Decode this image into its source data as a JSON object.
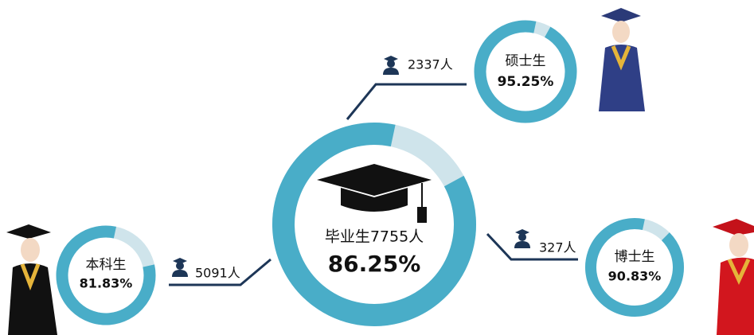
{
  "chart_data": [
    {
      "type": "donut",
      "title": "毕业生7755人",
      "values": [
        86.25
      ],
      "value_labels": [
        "86.25%"
      ],
      "color": "#49adc8",
      "track_color": "#cfe4eb"
    },
    {
      "type": "donut",
      "title": "硕士生",
      "annotation": "2337人",
      "values": [
        95.25
      ],
      "value_labels": [
        "95.25%"
      ],
      "color": "#49adc8",
      "track_color": "#cfe4eb"
    },
    {
      "type": "donut",
      "title": "博士生",
      "annotation": "327人",
      "values": [
        90.83
      ],
      "value_labels": [
        "90.83%"
      ],
      "color": "#49adc8",
      "track_color": "#cfe4eb"
    },
    {
      "type": "donut",
      "title": "本科生",
      "annotation": "5091人",
      "values": [
        81.83
      ],
      "value_labels": [
        "81.83%"
      ],
      "color": "#49adc8",
      "track_color": "#cfe4eb"
    }
  ]
}
